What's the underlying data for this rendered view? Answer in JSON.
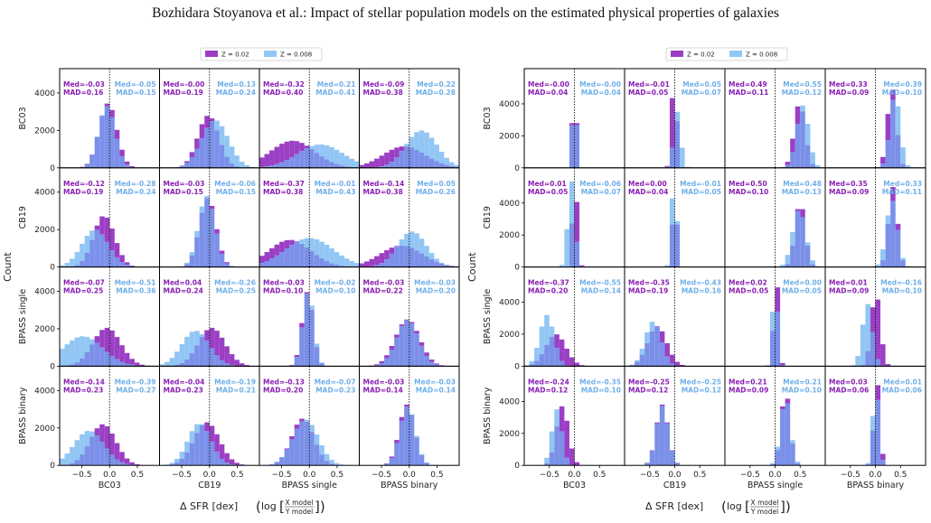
{
  "page_title": "Bozhidara Stoyanova  et al.: Impact of stellar population models on the estimated physical properties of galaxies",
  "colors": {
    "z1": "#9b3fc4",
    "z2": "#92c6f4",
    "overlap": "#7b90e8",
    "stat_z1": "#8a1fb3",
    "stat_z2": "#6fb0ea"
  },
  "legend": {
    "z1": "Z = 0.02",
    "z2": "Z = 0.008"
  },
  "row_labels": [
    "BC03",
    "CB19",
    "BPASS single",
    "BPASS binary"
  ],
  "col_labels": [
    "BC03",
    "CB19",
    "BPASS single",
    "BPASS binary"
  ],
  "ylabel": "Count",
  "xlabel": "Δ SFR [dex]",
  "xlabel_log": "log",
  "xlabel_num": "X model",
  "xlabel_den": "Y model",
  "chart_data": [
    {
      "type": "bar",
      "name": "left",
      "xlim": [
        -0.9,
        0.9
      ],
      "ylim": [
        0,
        5300
      ],
      "xticks": [
        -0.5,
        0.0,
        0.5
      ],
      "xtick_labels": [
        "−0.5",
        "0.0",
        "0.5"
      ],
      "yticks": [
        0,
        2000,
        4000
      ],
      "ytick_labels": [
        "0",
        "2000",
        "4000"
      ],
      "stats": [
        [
          [
            "-0.03",
            "0.16",
            "-0.05",
            "0.15"
          ],
          [
            "-0.00",
            "0.19",
            "0.13",
            "0.24"
          ],
          [
            "-0.32",
            "0.40",
            "0.21",
            "0.41"
          ],
          [
            "-0.09",
            "0.38",
            "0.22",
            "0.28"
          ]
        ],
        [
          [
            "-0.12",
            "0.19",
            "-0.28",
            "0.24"
          ],
          [
            "-0.03",
            "0.15",
            "-0.06",
            "0.15"
          ],
          [
            "-0.37",
            "0.38",
            "-0.01",
            "0.43"
          ],
          [
            "-0.14",
            "0.38",
            "0.05",
            "0.26"
          ]
        ],
        [
          [
            "-0.07",
            "0.25",
            "-0.51",
            "0.36"
          ],
          [
            "0.04",
            "0.24",
            "-0.26",
            "0.25"
          ],
          [
            "-0.03",
            "0.10",
            "-0.02",
            "0.10"
          ],
          [
            "-0.03",
            "0.22",
            "-0.03",
            "0.20"
          ]
        ],
        [
          [
            "-0.14",
            "0.23",
            "-0.39",
            "0.27"
          ],
          [
            "-0.04",
            "0.23",
            "-0.19",
            "0.21"
          ],
          [
            "-0.13",
            "0.20",
            "-0.07",
            "0.23"
          ],
          [
            "-0.03",
            "0.14",
            "-0.03",
            "0.14"
          ]
        ]
      ],
      "panels": [
        {
          "mu1": -0.03,
          "sd1": 0.16,
          "peak1": 3450,
          "mu2": -0.05,
          "sd2": 0.15,
          "peak2": 3300
        },
        {
          "mu1": -0.02,
          "sd1": 0.19,
          "peak1": 2800,
          "mu2": 0.1,
          "sd2": 0.24,
          "peak2": 2550
        },
        {
          "mu1": -0.3,
          "sd1": 0.4,
          "peak1": 1450,
          "mu2": 0.2,
          "sd2": 0.41,
          "peak2": 1250
        },
        {
          "mu1": -0.09,
          "sd1": 0.38,
          "peak1": 1150,
          "mu2": 0.22,
          "sd2": 0.28,
          "peak2": 2000
        },
        {
          "mu1": -0.1,
          "sd1": 0.19,
          "peak1": 2750,
          "mu2": -0.26,
          "sd2": 0.24,
          "peak2": 2000
        },
        {
          "mu1": -0.03,
          "sd1": 0.15,
          "peak1": 3700,
          "mu2": -0.05,
          "sd2": 0.15,
          "peak2": 3800
        },
        {
          "mu1": -0.35,
          "sd1": 0.38,
          "peak1": 1450,
          "mu2": 0.0,
          "sd2": 0.43,
          "peak2": 1550
        },
        {
          "mu1": -0.14,
          "sd1": 0.38,
          "peak1": 1150,
          "mu2": 0.05,
          "sd2": 0.26,
          "peak2": 1900
        },
        {
          "mu1": -0.05,
          "sd1": 0.25,
          "peak1": 2050,
          "mu2": -0.48,
          "sd2": 0.36,
          "peak2": 1600
        },
        {
          "mu1": 0.04,
          "sd1": 0.24,
          "peak1": 2050,
          "mu2": -0.25,
          "sd2": 0.25,
          "peak2": 1900
        },
        {
          "mu1": -0.03,
          "sd1": 0.1,
          "peak1": 4000,
          "mu2": -0.02,
          "sd2": 0.1,
          "peak2": 4000
        },
        {
          "mu1": -0.03,
          "sd1": 0.22,
          "peak1": 2500,
          "mu2": -0.03,
          "sd2": 0.2,
          "peak2": 2450
        },
        {
          "mu1": -0.12,
          "sd1": 0.23,
          "peak1": 2200,
          "mu2": -0.37,
          "sd2": 0.27,
          "peak2": 1850
        },
        {
          "mu1": -0.05,
          "sd1": 0.23,
          "peak1": 2300,
          "mu2": -0.18,
          "sd2": 0.21,
          "peak2": 2250
        },
        {
          "mu1": -0.12,
          "sd1": 0.2,
          "peak1": 2500,
          "mu2": -0.07,
          "sd2": 0.23,
          "peak2": 2450
        },
        {
          "mu1": -0.04,
          "sd1": 0.14,
          "peak1": 3250,
          "mu2": -0.03,
          "sd2": 0.14,
          "peak2": 3150
        }
      ]
    },
    {
      "type": "bar",
      "name": "right",
      "xlim": [
        -1.0,
        1.0
      ],
      "ylim": [
        0,
        6200
      ],
      "xticks": [
        -0.5,
        0.0,
        0.5
      ],
      "xtick_labels": [
        "−0.5",
        "0.0",
        "0.5"
      ],
      "yticks": [
        0,
        2000,
        4000
      ],
      "ytick_labels": [
        "0",
        "2000",
        "4000"
      ],
      "stats": [
        [
          [
            "-0.00",
            "0.04",
            "-0.00",
            "0.04"
          ],
          [
            "-0.01",
            "0.05",
            "0.05",
            "0.07"
          ],
          [
            "0.49",
            "0.11",
            "0.55",
            "0.12"
          ],
          [
            "0.33",
            "0.09",
            "0.39",
            "0.10"
          ]
        ],
        [
          [
            "0.01",
            "0.05",
            "-0.06",
            "0.07"
          ],
          [
            "0.00",
            "0.04",
            "-0.01",
            "0.05"
          ],
          [
            "0.50",
            "0.10",
            "0.48",
            "0.13"
          ],
          [
            "0.35",
            "0.09",
            "0.33",
            "0.11"
          ]
        ],
        [
          [
            "-0.37",
            "0.20",
            "-0.55",
            "0.14"
          ],
          [
            "-0.35",
            "0.19",
            "-0.43",
            "0.16"
          ],
          [
            "0.02",
            "0.05",
            "0.00",
            "0.05"
          ],
          [
            "0.01",
            "0.09",
            "-0.16",
            "0.10"
          ]
        ],
        [
          [
            "-0.24",
            "0.12",
            "-0.35",
            "0.10"
          ],
          [
            "-0.25",
            "0.12",
            "-0.25",
            "0.12"
          ],
          [
            "0.21",
            "0.09",
            "0.21",
            "0.10"
          ],
          [
            "0.03",
            "0.06",
            "0.01",
            "0.06"
          ]
        ]
      ],
      "panels": [
        {
          "mu1": 0.0,
          "sd1": 0.04,
          "peak1": 6100,
          "mu2": 0.0,
          "sd2": 0.04,
          "peak2": 5800
        },
        {
          "mu1": -0.01,
          "sd1": 0.05,
          "peak1": 6000,
          "mu2": 0.05,
          "sd2": 0.07,
          "peak2": 3500
        },
        {
          "mu1": 0.49,
          "sd1": 0.11,
          "peak1": 4100,
          "mu2": 0.55,
          "sd2": 0.12,
          "peak2": 3900
        },
        {
          "mu1": 0.33,
          "sd1": 0.09,
          "peak1": 5000,
          "mu2": 0.39,
          "sd2": 0.1,
          "peak2": 4600
        },
        {
          "mu1": 0.01,
          "sd1": 0.05,
          "peak1": 5600,
          "mu2": -0.06,
          "sd2": 0.07,
          "peak2": 5400
        },
        {
          "mu1": 0.0,
          "sd1": 0.04,
          "peak1": 5800,
          "mu2": -0.01,
          "sd2": 0.05,
          "peak2": 5900
        },
        {
          "mu1": 0.5,
          "sd1": 0.1,
          "peak1": 4100,
          "mu2": 0.48,
          "sd2": 0.13,
          "peak2": 3600
        },
        {
          "mu1": 0.35,
          "sd1": 0.09,
          "peak1": 5000,
          "mu2": 0.33,
          "sd2": 0.11,
          "peak2": 4200
        },
        {
          "mu1": -0.37,
          "sd1": 0.2,
          "peak1": 2000,
          "mu2": -0.55,
          "sd2": 0.14,
          "peak2": 3200
        },
        {
          "mu1": -0.35,
          "sd1": 0.19,
          "peak1": 2500,
          "mu2": -0.43,
          "sd2": 0.16,
          "peak2": 2800
        },
        {
          "mu1": 0.02,
          "sd1": 0.05,
          "peak1": 5900,
          "mu2": 0.0,
          "sd2": 0.05,
          "peak2": 5600
        },
        {
          "mu1": 0.01,
          "sd1": 0.09,
          "peak1": 4600,
          "mu2": -0.16,
          "sd2": 0.1,
          "peak2": 3900
        },
        {
          "mu1": -0.24,
          "sd1": 0.12,
          "peak1": 3700,
          "mu2": -0.35,
          "sd2": 0.1,
          "peak2": 3500
        },
        {
          "mu1": -0.25,
          "sd1": 0.12,
          "peak1": 3800,
          "mu2": -0.25,
          "sd2": 0.12,
          "peak2": 3700
        },
        {
          "mu1": 0.21,
          "sd1": 0.09,
          "peak1": 4600,
          "mu2": 0.21,
          "sd2": 0.1,
          "peak2": 4200
        },
        {
          "mu1": 0.03,
          "sd1": 0.06,
          "peak1": 5300,
          "mu2": 0.01,
          "sd2": 0.06,
          "peak2": 5100
        }
      ]
    }
  ]
}
